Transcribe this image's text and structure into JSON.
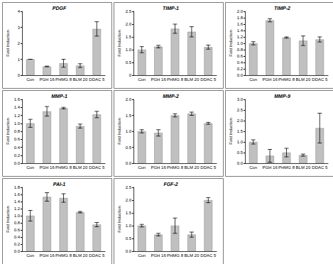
{
  "chart_data": [
    {
      "type": "bar",
      "title": "PDGF",
      "y_label": "Fold Induction",
      "categories": [
        "Con",
        "PGH 16",
        "PHMG 8",
        "BLM 20",
        "DDAC 5"
      ],
      "values": [
        1.0,
        0.55,
        0.75,
        0.6,
        2.9
      ],
      "errors": [
        0.0,
        0.02,
        0.25,
        0.12,
        0.45
      ],
      "color": "#c0c0c0",
      "ylim": [
        0,
        4
      ],
      "yticks": [
        0,
        1,
        2,
        3,
        4
      ]
    },
    {
      "type": "bar",
      "title": "TIMP-1",
      "y_label": "Fold Induction",
      "categories": [
        "Con",
        "PGH 16",
        "PHMG 8",
        "BLM 20",
        "DDAC 5"
      ],
      "values": [
        1.0,
        1.12,
        1.82,
        1.7,
        1.1
      ],
      "errors": [
        0.12,
        0.05,
        0.18,
        0.2,
        0.08
      ],
      "color": "#c0c0c0",
      "ylim": [
        0,
        2.5
      ],
      "yticks": [
        0,
        0.5,
        {
          "value": 1,
          "label": "1.0"
        },
        1.5,
        {
          "value": 2,
          "label": "2.0"
        },
        2.5
      ]
    },
    {
      "type": "bar",
      "title": "TIMP-2",
      "y_label": "Fold Induction",
      "categories": [
        "Con",
        "PGH 16",
        "PHMG 8",
        "BLM 20",
        "DDAC 5"
      ],
      "values": [
        1.0,
        1.72,
        1.18,
        1.08,
        1.12
      ],
      "errors": [
        0.05,
        0.05,
        0.02,
        0.15,
        0.08
      ],
      "color": "#c0c0c0",
      "ylim": [
        0,
        2
      ],
      "yticks": [
        {
          "value": 0,
          "label": "0.0"
        },
        0.2,
        0.4,
        0.6,
        0.8,
        {
          "value": 1,
          "label": "1.0"
        },
        1.2,
        1.4,
        1.6,
        1.8,
        {
          "value": 2,
          "label": "2.0"
        }
      ]
    },
    {
      "type": "bar",
      "title": "MMP-1",
      "y_label": "Fold Induction",
      "categories": [
        "Con",
        "PGH 16",
        "PHMG 8",
        "BLM 20",
        "DDAC 5"
      ],
      "values": [
        1.0,
        1.3,
        1.38,
        0.93,
        1.22
      ],
      "errors": [
        0.1,
        0.12,
        0.02,
        0.05,
        0.08
      ],
      "color": "#c0c0c0",
      "ylim": [
        0,
        1.6
      ],
      "yticks": [
        {
          "value": 0,
          "label": "0.0"
        },
        0.2,
        0.4,
        0.6,
        0.8,
        {
          "value": 1,
          "label": "1.0"
        },
        1.2,
        1.4,
        1.6
      ]
    },
    {
      "type": "bar",
      "title": "MMP-2",
      "y_label": "Fold Induction",
      "categories": [
        "Con",
        "PGH 16",
        "PHMG 8",
        "BLM 20",
        "DDAC 5"
      ],
      "values": [
        1.0,
        0.95,
        1.5,
        1.55,
        1.25
      ],
      "errors": [
        0.05,
        0.1,
        0.05,
        0.05,
        0.03
      ],
      "color": "#c0c0c0",
      "ylim": [
        0,
        2
      ],
      "yticks": [
        {
          "value": 0,
          "label": "0.0"
        },
        0.5,
        {
          "value": 1,
          "label": "1.0"
        },
        1.5,
        {
          "value": 2,
          "label": "2.0"
        }
      ]
    },
    {
      "type": "bar",
      "title": "MMP-9",
      "y_label": "Fold Induction",
      "categories": [
        "Con",
        "PGH 16",
        "PHMG 8",
        "BLM 20",
        "DDAC 5"
      ],
      "values": [
        1.0,
        0.35,
        0.5,
        0.38,
        1.65
      ],
      "errors": [
        0.1,
        0.3,
        0.2,
        0.05,
        0.7
      ],
      "color": "#c0c0c0",
      "ylim": [
        0,
        3
      ],
      "yticks": [
        {
          "value": 0,
          "label": "0.0"
        },
        0.5,
        {
          "value": 1,
          "label": "1.0"
        },
        1.5,
        {
          "value": 2,
          "label": "2.0"
        },
        2.5,
        {
          "value": 3,
          "label": "3.0"
        }
      ]
    },
    {
      "type": "bar",
      "title": "PAI-1",
      "y_label": "Fold Induction",
      "categories": [
        "Con",
        "PGH 16",
        "PHMG 8",
        "BLM 20",
        "DDAC 5"
      ],
      "values": [
        1.0,
        1.53,
        1.5,
        1.1,
        0.75
      ],
      "errors": [
        0.15,
        0.12,
        0.12,
        0.02,
        0.06
      ],
      "color": "#c0c0c0",
      "ylim": [
        0,
        1.8
      ],
      "yticks": [
        {
          "value": 0,
          "label": "0.0"
        },
        0.2,
        0.4,
        0.6,
        0.8,
        {
          "value": 1,
          "label": "1.0"
        },
        1.2,
        1.4,
        1.6,
        1.8
      ]
    },
    {
      "type": "bar",
      "title": "FGF-2",
      "y_label": "Fold Induction",
      "categories": [
        "Con",
        "PGH 16",
        "PHMG 8",
        "BLM 20",
        "DDAC 5"
      ],
      "values": [
        1.0,
        0.65,
        1.0,
        0.65,
        2.0
      ],
      "errors": [
        0.05,
        0.05,
        0.3,
        0.1,
        0.1
      ],
      "color": "#c0c0c0",
      "ylim": [
        0,
        2.5
      ],
      "yticks": [
        {
          "value": 0,
          "label": "0.0"
        },
        0.5,
        {
          "value": 1,
          "label": "1.0"
        },
        1.5,
        {
          "value": 2,
          "label": "2.0"
        },
        2.5
      ]
    }
  ]
}
